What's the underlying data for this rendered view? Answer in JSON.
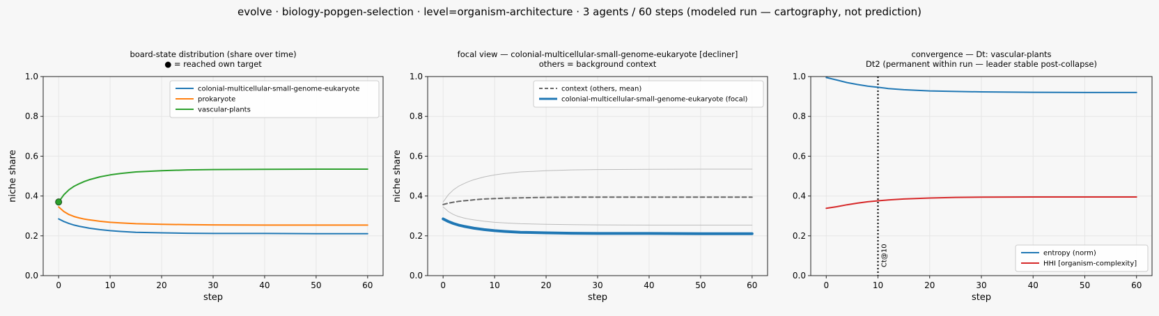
{
  "suptitle": "evolve · biology-popgen-selection · level=organism-architecture · 3 agents / 60 steps   (modeled run — cartography, not prediction)",
  "chart_data": [
    {
      "type": "line",
      "title_lines": [
        "board-state distribution (share over time)",
        "● = reached own target"
      ],
      "xlabel": "step",
      "ylabel": "niche share",
      "xlim": [
        -3,
        63
      ],
      "ylim": [
        0,
        1
      ],
      "xticks": [
        0,
        10,
        20,
        30,
        40,
        50,
        60
      ],
      "yticks": [
        0.0,
        0.2,
        0.4,
        0.6,
        0.8,
        1.0
      ],
      "grid": true,
      "legend_position": "top-right",
      "x": [
        0,
        1,
        2,
        3,
        4,
        5,
        6,
        8,
        10,
        12,
        15,
        20,
        25,
        30,
        40,
        50,
        60
      ],
      "series": [
        {
          "name": "colonial-multicellular-small-genome-eukaryote",
          "color": "#1f77b4",
          "values": [
            0.285,
            0.272,
            0.262,
            0.254,
            0.248,
            0.243,
            0.238,
            0.231,
            0.226,
            0.222,
            0.218,
            0.215,
            0.213,
            0.212,
            0.212,
            0.211,
            0.211
          ]
        },
        {
          "name": "prokaryote",
          "color": "#ff7f0e",
          "values": [
            0.345,
            0.322,
            0.307,
            0.297,
            0.29,
            0.284,
            0.28,
            0.273,
            0.268,
            0.265,
            0.261,
            0.258,
            0.256,
            0.255,
            0.254,
            0.254,
            0.254
          ]
        },
        {
          "name": "vascular-plants",
          "color": "#2ca02c",
          "values": [
            0.37,
            0.406,
            0.431,
            0.449,
            0.462,
            0.473,
            0.482,
            0.496,
            0.506,
            0.513,
            0.521,
            0.527,
            0.531,
            0.533,
            0.534,
            0.535,
            0.535
          ]
        }
      ],
      "markers": [
        {
          "x": 0,
          "y": 0.37,
          "color": "#2ca02c"
        }
      ]
    },
    {
      "type": "line",
      "title_lines": [
        "focal view — colonial-multicellular-small-genome-eukaryote  [decliner]",
        "others = background context"
      ],
      "xlabel": "step",
      "ylabel": "niche share",
      "xlim": [
        -3,
        63
      ],
      "ylim": [
        0,
        1
      ],
      "xticks": [
        0,
        10,
        20,
        30,
        40,
        50,
        60
      ],
      "yticks": [
        0.0,
        0.2,
        0.4,
        0.6,
        0.8,
        1.0
      ],
      "grid": true,
      "legend_position": "top-right",
      "x": [
        0,
        1,
        2,
        3,
        4,
        5,
        6,
        8,
        10,
        12,
        15,
        20,
        25,
        30,
        40,
        50,
        60
      ],
      "series": [
        {
          "color": "#bbbbbb",
          "width": 1,
          "values": [
            0.37,
            0.406,
            0.431,
            0.449,
            0.462,
            0.473,
            0.482,
            0.496,
            0.506,
            0.513,
            0.521,
            0.527,
            0.531,
            0.533,
            0.534,
            0.535,
            0.535
          ]
        },
        {
          "color": "#bbbbbb",
          "width": 1,
          "values": [
            0.345,
            0.322,
            0.307,
            0.297,
            0.29,
            0.284,
            0.28,
            0.273,
            0.268,
            0.265,
            0.261,
            0.258,
            0.256,
            0.255,
            0.254,
            0.254,
            0.254
          ]
        },
        {
          "name": "context (others, mean)",
          "color": "#666666",
          "dash": true,
          "width": 2,
          "values": [
            0.357,
            0.364,
            0.369,
            0.373,
            0.376,
            0.378,
            0.381,
            0.385,
            0.387,
            0.389,
            0.391,
            0.393,
            0.394,
            0.394,
            0.394,
            0.394,
            0.394
          ]
        },
        {
          "name": "colonial-multicellular-small-genome-eukaryote (focal)",
          "color": "#1f77b4",
          "width": 4,
          "values": [
            0.285,
            0.272,
            0.262,
            0.254,
            0.248,
            0.243,
            0.238,
            0.231,
            0.226,
            0.222,
            0.218,
            0.215,
            0.213,
            0.212,
            0.212,
            0.211,
            0.211
          ]
        }
      ]
    },
    {
      "type": "line",
      "title_lines": [
        "convergence — Dt: vascular-plants",
        "Dt2 (permanent within run — leader stable post-collapse)"
      ],
      "xlabel": "step",
      "xlim": [
        -3,
        63
      ],
      "ylim": [
        0,
        1
      ],
      "xticks": [
        0,
        10,
        20,
        30,
        40,
        50,
        60
      ],
      "yticks": [
        0.0,
        0.2,
        0.4,
        0.6,
        0.8,
        1.0
      ],
      "grid": true,
      "legend_position": "bottom-right",
      "x": [
        0,
        2,
        4,
        6,
        8,
        10,
        12,
        15,
        20,
        25,
        30,
        40,
        50,
        60
      ],
      "series": [
        {
          "name": "entropy (norm)",
          "color": "#1f77b4",
          "width": 2,
          "values": [
            0.995,
            0.983,
            0.97,
            0.96,
            0.952,
            0.946,
            0.94,
            0.934,
            0.928,
            0.925,
            0.923,
            0.921,
            0.92,
            0.92
          ]
        },
        {
          "name": "HHI [organism-complexity]",
          "color": "#d62728",
          "width": 2,
          "values": [
            0.338,
            0.346,
            0.356,
            0.364,
            0.371,
            0.376,
            0.38,
            0.385,
            0.39,
            0.393,
            0.394,
            0.395,
            0.395,
            0.395
          ]
        }
      ],
      "vline": {
        "x": 10,
        "label": "Ct@10"
      }
    }
  ]
}
